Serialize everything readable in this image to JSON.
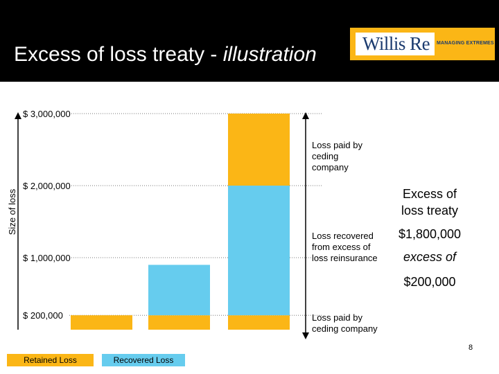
{
  "slide": {
    "title_main": "Excess of loss treaty - ",
    "title_italic": "illustration",
    "page_number": "8"
  },
  "logo": {
    "name": "Willis Re",
    "tagline": "MANAGING EXTREMES"
  },
  "colors": {
    "retained": "#fbb616",
    "recovered": "#66ccee",
    "header_bg": "#000000",
    "logo_bg": "#fbb616"
  },
  "chart_data": {
    "type": "bar",
    "stacked": true,
    "ylabel": "Size of loss",
    "ylim": [
      0,
      3000000
    ],
    "y_tick_labels": [
      "$ 3,000,000",
      "$ 2,000,000",
      "$ 1,000,000",
      "$ 200,000"
    ],
    "y_tick_values": [
      3000000,
      2000000,
      1000000,
      200000
    ],
    "grid": "dotted",
    "categories": [
      "",
      "",
      ""
    ],
    "series": [
      {
        "name": "Retained Loss",
        "color": "#fbb616",
        "values": [
          200000,
          200000,
          200000
        ]
      },
      {
        "name": "Recovered Loss",
        "color": "#66ccee",
        "values": [
          0,
          700000,
          1800000
        ]
      },
      {
        "name": "",
        "color": "#fbb616",
        "values": [
          0,
          0,
          1000000
        ]
      }
    ],
    "legend": [
      "Retained Loss",
      "Recovered Loss"
    ],
    "legend_position": "bottom-left"
  },
  "annotations": {
    "top_paid": "Loss paid by ceding company",
    "recovered": "Loss recovered from excess of loss reinsurance",
    "bottom_paid": "Loss paid by ceding company"
  },
  "summary": {
    "line1": "Excess of",
    "line2": "loss treaty",
    "limit": "$1,800,000",
    "excess_of": "excess of",
    "retention": "$200,000"
  }
}
